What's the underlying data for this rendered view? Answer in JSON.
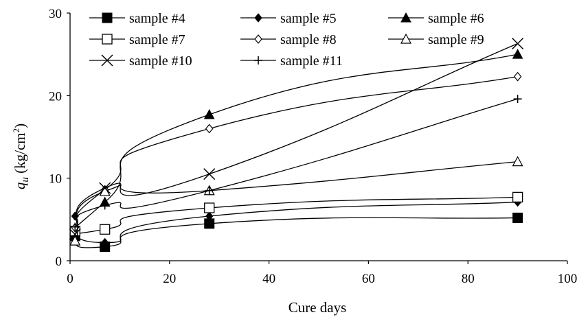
{
  "chart_data": {
    "type": "line",
    "xlabel": "Cure days",
    "ylabel": {
      "symbol": "q",
      "sub": "u",
      "unit_open": " (kg/cm",
      "unit_sup": "2",
      "unit_close": ")"
    },
    "xlim": [
      0,
      100
    ],
    "ylim": [
      0,
      30
    ],
    "xticks": [
      "0",
      "20",
      "40",
      "60",
      "80",
      "100"
    ],
    "yticks": [
      "0",
      "10",
      "20",
      "30"
    ],
    "grid": false,
    "legend_position": "top-left",
    "series": [
      {
        "name": "sample #4",
        "marker": "square-filled",
        "x": [
          1,
          7,
          28,
          90
        ],
        "y": [
          3.0,
          1.7,
          4.5,
          5.2
        ]
      },
      {
        "name": "sample #5",
        "marker": "diamond-filled",
        "x": [
          1,
          7,
          28,
          90
        ],
        "y": [
          5.4,
          2.2,
          5.4,
          7.1
        ]
      },
      {
        "name": "sample #6",
        "marker": "triangle-filled",
        "x": [
          1,
          7,
          28,
          90
        ],
        "y": [
          3.9,
          7.1,
          17.7,
          25.0
        ]
      },
      {
        "name": "sample #7",
        "marker": "square-open",
        "x": [
          1,
          7,
          28,
          90
        ],
        "y": [
          3.6,
          3.8,
          6.4,
          7.7
        ]
      },
      {
        "name": "sample #8",
        "marker": "diamond-open",
        "x": [
          1,
          7,
          28,
          90
        ],
        "y": [
          4.0,
          8.6,
          16.0,
          22.3
        ]
      },
      {
        "name": "sample #9",
        "marker": "triangle-open",
        "x": [
          1,
          7,
          28,
          90
        ],
        "y": [
          2.4,
          8.4,
          8.5,
          12.0
        ]
      },
      {
        "name": "sample #10",
        "marker": "x",
        "x": [
          1,
          7,
          28,
          90
        ],
        "y": [
          3.2,
          8.8,
          10.5,
          26.3
        ]
      },
      {
        "name": "sample #11",
        "marker": "plus",
        "x": [
          1,
          7,
          28,
          90
        ],
        "y": [
          4.1,
          6.7,
          8.5,
          19.6
        ]
      }
    ]
  }
}
